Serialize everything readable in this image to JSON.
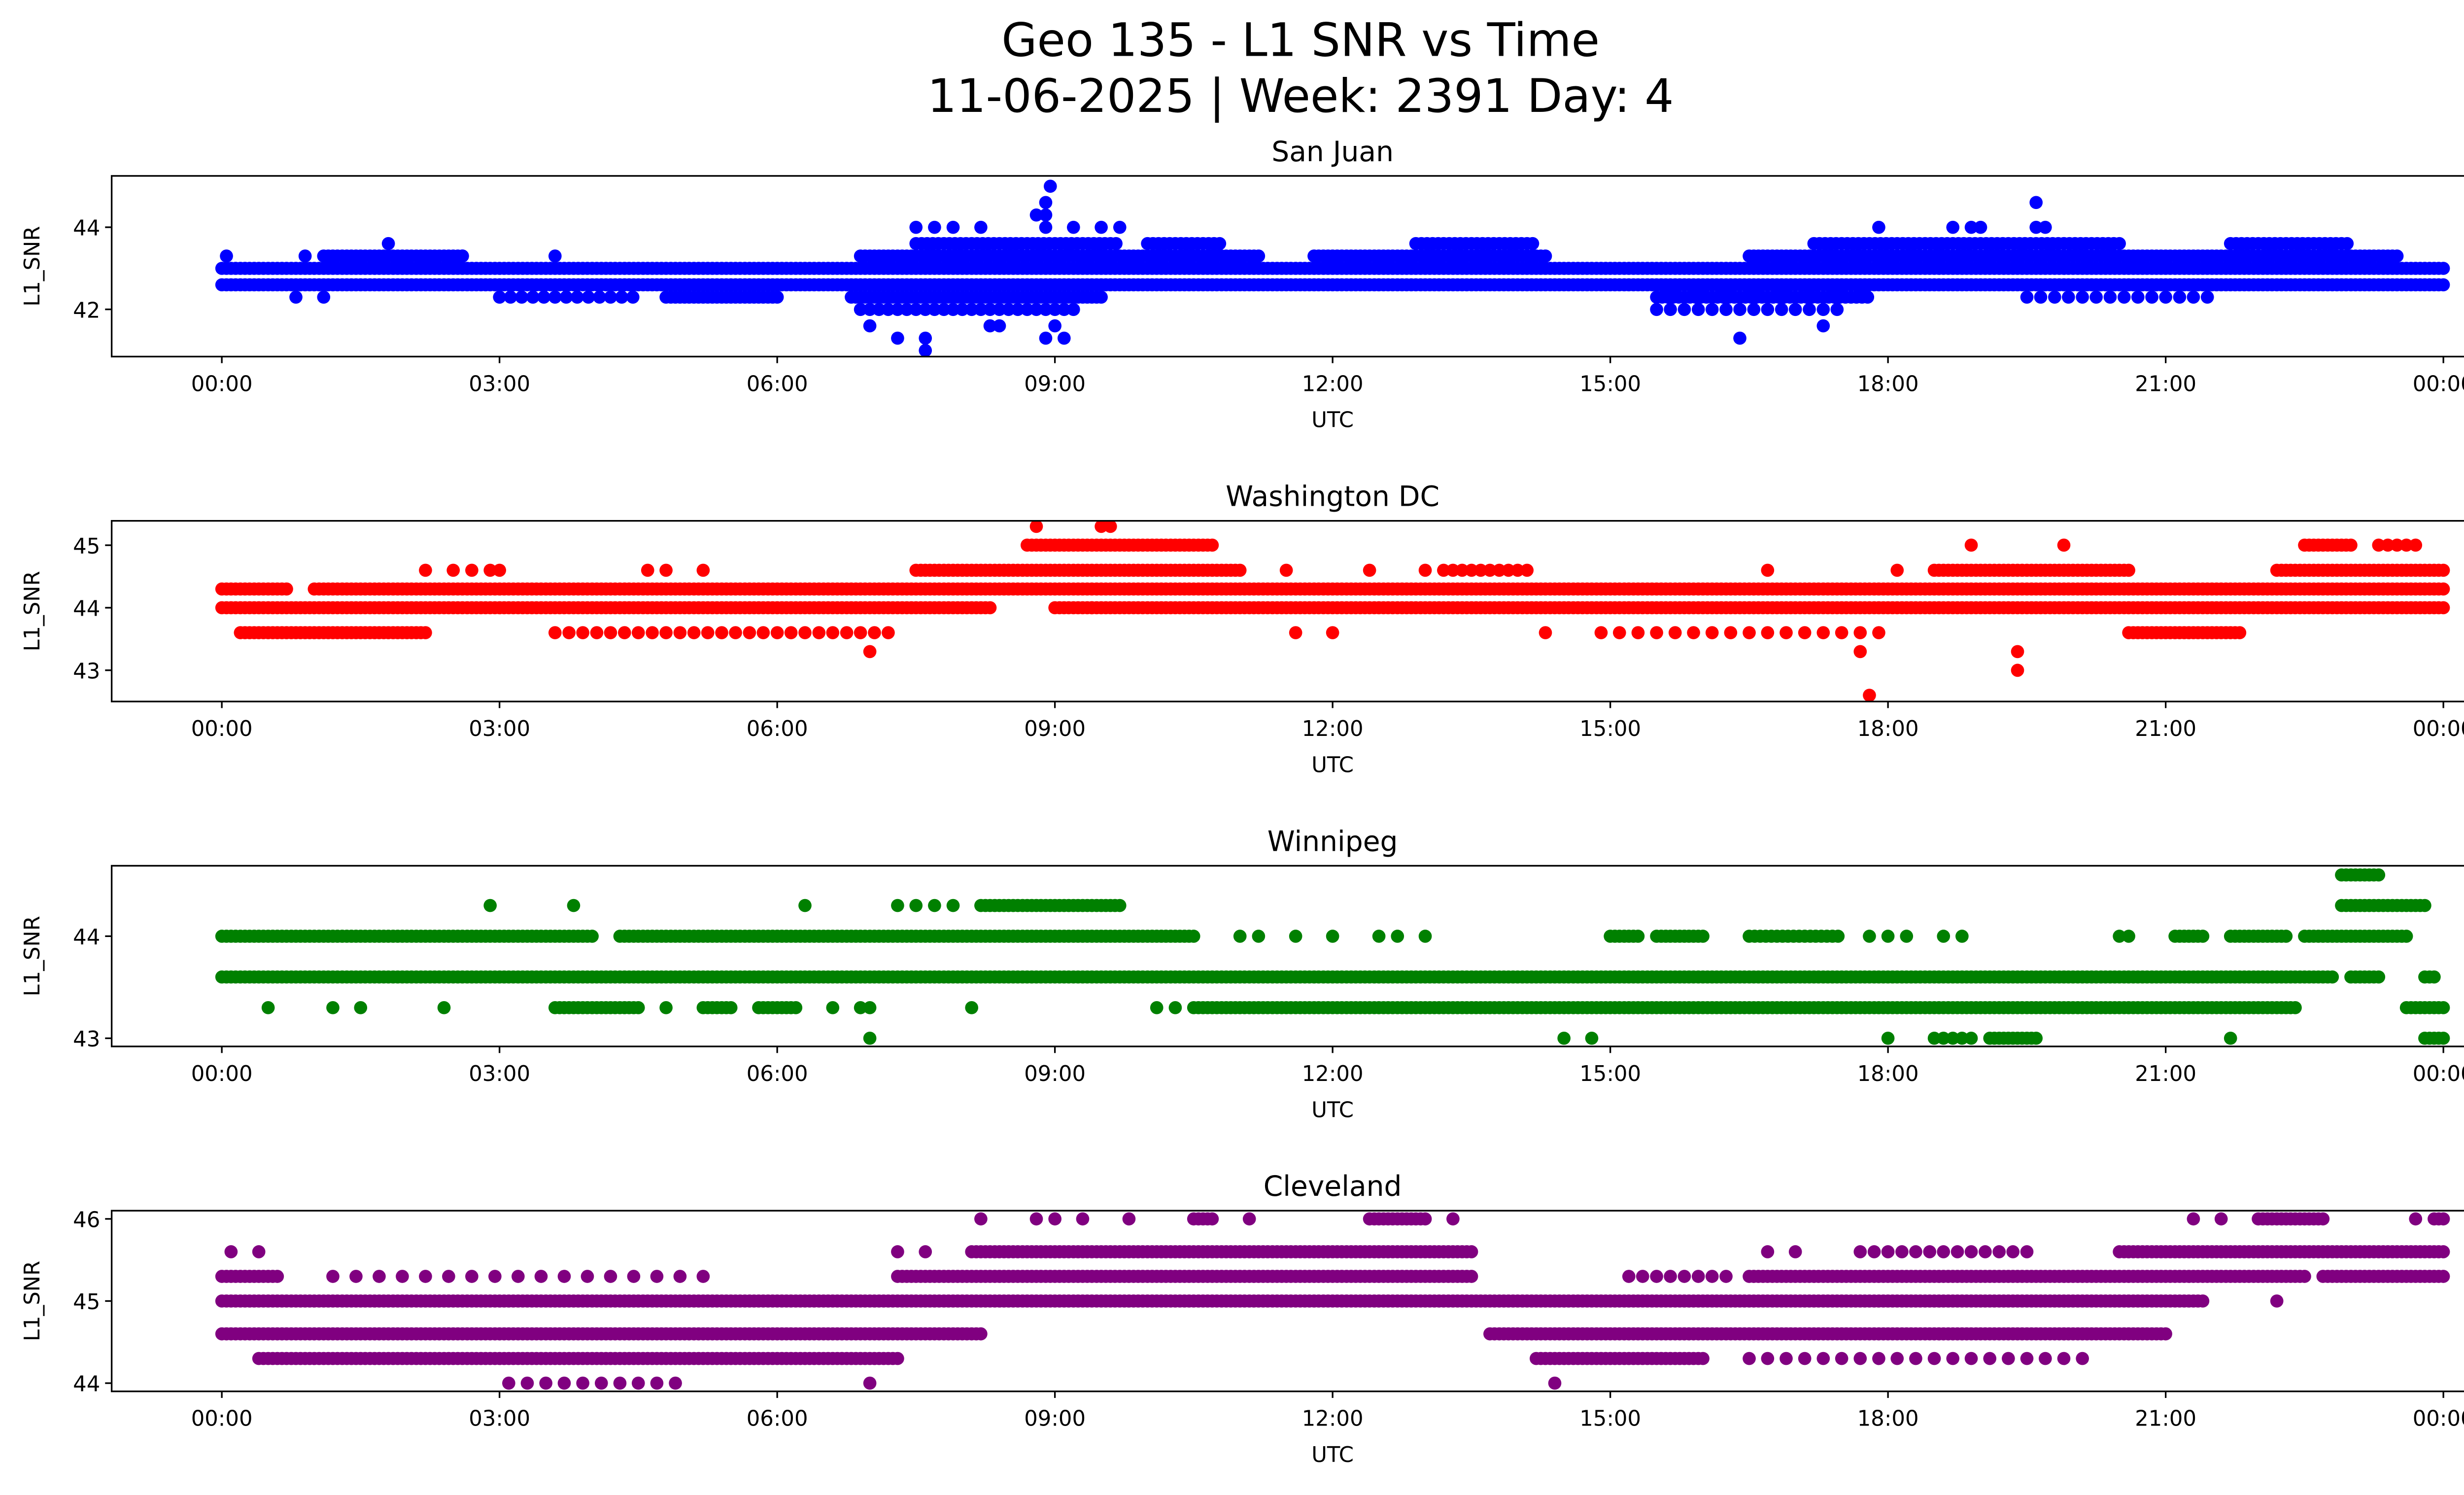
{
  "chart_data": {
    "type": "scatter",
    "title_line1": "Geo 135 - L1 SNR vs Time",
    "title_line2": "11-06-2025 | Week: 2391 Day: 4",
    "xlabel": "UTC",
    "ylabel": "L1_SNR",
    "x_unit": "hours UTC",
    "xlim": [
      -1.19,
      25.19
    ],
    "x_ticks": [
      0,
      3,
      6,
      9,
      12,
      15,
      18,
      21,
      24
    ],
    "x_tick_labels": [
      "00:00",
      "03:00",
      "06:00",
      "09:00",
      "12:00",
      "15:00",
      "18:00",
      "21:00",
      "00:00"
    ],
    "panels": [
      {
        "title": "San Juan",
        "color": "#0000ff",
        "ylim": [
          40.85,
          45.25
        ],
        "y_ticks": [
          42,
          44
        ],
        "y_tick_labels": [
          "42",
          "44"
        ],
        "runs": [
          [
            42.6,
            0,
            24,
            0.05
          ],
          [
            43.0,
            0,
            24,
            0.05
          ],
          [
            43.3,
            1.1,
            2.6,
            0.05
          ],
          [
            43.3,
            6.9,
            11.2,
            0.05
          ],
          [
            43.3,
            11.8,
            14.3,
            0.05
          ],
          [
            43.3,
            16.5,
            23.5,
            0.05
          ],
          [
            43.6,
            7.5,
            9.7,
            0.06
          ],
          [
            43.6,
            10.0,
            10.8,
            0.06
          ],
          [
            43.6,
            12.9,
            14.2,
            0.06
          ],
          [
            43.6,
            17.2,
            20.5,
            0.06
          ],
          [
            43.6,
            21.7,
            23.0,
            0.06
          ],
          [
            42.3,
            3.0,
            4.5,
            0.12
          ],
          [
            42.3,
            4.8,
            6.0,
            0.05
          ],
          [
            42.3,
            6.8,
            9.5,
            0.05
          ],
          [
            42.3,
            15.5,
            17.8,
            0.06
          ],
          [
            42.3,
            19.5,
            21.5,
            0.15
          ],
          [
            42.0,
            6.9,
            9.2,
            0.1
          ],
          [
            42.0,
            15.5,
            17.5,
            0.15
          ]
        ],
        "points": [
          [
            7.5,
            44
          ],
          [
            7.7,
            44
          ],
          [
            7.9,
            44
          ],
          [
            8.2,
            44
          ],
          [
            8.9,
            44
          ],
          [
            9.2,
            44
          ],
          [
            9.5,
            44
          ],
          [
            9.7,
            44
          ],
          [
            17.9,
            44
          ],
          [
            18.7,
            44
          ],
          [
            18.9,
            44
          ],
          [
            19.0,
            44
          ],
          [
            19.6,
            44
          ],
          [
            19.7,
            44
          ],
          [
            8.8,
            44.3
          ],
          [
            8.9,
            44.3
          ],
          [
            8.9,
            44.6
          ],
          [
            19.6,
            44.6
          ],
          [
            8.95,
            45
          ],
          [
            7.0,
            41.6
          ],
          [
            8.3,
            41.6
          ],
          [
            8.4,
            41.6
          ],
          [
            9.0,
            41.6
          ],
          [
            17.3,
            41.6
          ],
          [
            7.3,
            41.3
          ],
          [
            7.6,
            41.3
          ],
          [
            8.9,
            41.3
          ],
          [
            9.1,
            41.3
          ],
          [
            16.4,
            41.3
          ],
          [
            7.6,
            41.0
          ],
          [
            1.8,
            43.6
          ],
          [
            0.05,
            43.3
          ],
          [
            0.9,
            43.3
          ],
          [
            2.6,
            43.3
          ],
          [
            3.6,
            43.3
          ],
          [
            0.8,
            42.3
          ],
          [
            1.1,
            42.3
          ]
        ]
      },
      {
        "title": "Washington DC",
        "color": "#ff0000",
        "ylim": [
          42.5,
          45.39
        ],
        "y_ticks": [
          43,
          44,
          45
        ],
        "y_tick_labels": [
          "43",
          "44",
          "45"
        ],
        "runs": [
          [
            44.3,
            0,
            0.7,
            0.05
          ],
          [
            44.3,
            1.0,
            24,
            0.05
          ],
          [
            44.0,
            0,
            8.3,
            0.05
          ],
          [
            44.0,
            9.0,
            24,
            0.05
          ],
          [
            43.6,
            0.2,
            2.2,
            0.05
          ],
          [
            43.6,
            3.6,
            7.3,
            0.15
          ],
          [
            43.6,
            14.9,
            17.9,
            0.2
          ],
          [
            43.6,
            20.6,
            21.8,
            0.05
          ],
          [
            44.6,
            7.5,
            11.0,
            0.05
          ],
          [
            44.6,
            18.5,
            20.6,
            0.05
          ],
          [
            44.6,
            22.2,
            24,
            0.05
          ],
          [
            44.6,
            13.2,
            14.1,
            0.1
          ],
          [
            45.0,
            8.7,
            10.7,
            0.05
          ],
          [
            45.0,
            22.5,
            23.0,
            0.05
          ],
          [
            45.0,
            23.3,
            23.7,
            0.1
          ]
        ],
        "points": [
          [
            2.2,
            44.6
          ],
          [
            2.5,
            44.6
          ],
          [
            2.7,
            44.6
          ],
          [
            2.9,
            44.6
          ],
          [
            3.0,
            44.6
          ],
          [
            4.6,
            44.6
          ],
          [
            4.8,
            44.6
          ],
          [
            5.2,
            44.6
          ],
          [
            11.5,
            44.6
          ],
          [
            12.4,
            44.6
          ],
          [
            13.0,
            44.6
          ],
          [
            16.7,
            44.6
          ],
          [
            18.1,
            44.6
          ],
          [
            18.9,
            45
          ],
          [
            19.9,
            45
          ],
          [
            8.8,
            45.3
          ],
          [
            9.5,
            45.3
          ],
          [
            9.6,
            45.3
          ],
          [
            7.0,
            43.3
          ],
          [
            17.7,
            43.3
          ],
          [
            19.4,
            43.3
          ],
          [
            19.4,
            43.0
          ],
          [
            17.8,
            42.6
          ],
          [
            11.6,
            43.6
          ],
          [
            12.0,
            43.6
          ],
          [
            14.3,
            43.6
          ],
          [
            9.4,
            44.0
          ]
        ]
      },
      {
        "title": "Winnipeg",
        "color": "#008000",
        "ylim": [
          42.92,
          44.69
        ],
        "y_ticks": [
          43,
          44
        ],
        "y_tick_labels": [
          "43",
          "44"
        ],
        "runs": [
          [
            44.0,
            0,
            4.0,
            0.05
          ],
          [
            44.0,
            4.3,
            10.5,
            0.05
          ],
          [
            44.0,
            15.0,
            15.3,
            0.05
          ],
          [
            44.0,
            15.5,
            16.0,
            0.05
          ],
          [
            44.0,
            16.5,
            17.5,
            0.06
          ],
          [
            44.0,
            21.1,
            21.4,
            0.05
          ],
          [
            44.0,
            21.7,
            22.3,
            0.05
          ],
          [
            44.0,
            22.5,
            23.6,
            0.05
          ],
          [
            43.6,
            0,
            22.8,
            0.05
          ],
          [
            43.6,
            23.0,
            23.3,
            0.05
          ],
          [
            43.6,
            23.8,
            23.9,
            0.05
          ],
          [
            43.3,
            3.6,
            4.5,
            0.05
          ],
          [
            43.3,
            5.2,
            5.5,
            0.05
          ],
          [
            43.3,
            5.8,
            6.2,
            0.05
          ],
          [
            43.3,
            10.5,
            22.4,
            0.05
          ],
          [
            43.3,
            23.6,
            24,
            0.05
          ],
          [
            43.0,
            18.5,
            18.9,
            0.1
          ],
          [
            43.0,
            19.1,
            19.6,
            0.05
          ],
          [
            43.0,
            23.8,
            24,
            0.05
          ],
          [
            44.3,
            8.2,
            9.7,
            0.05
          ],
          [
            44.3,
            22.9,
            23.8,
            0.05
          ],
          [
            44.6,
            22.9,
            23.3,
            0.05
          ]
        ],
        "points": [
          [
            11.0,
            44
          ],
          [
            11.2,
            44
          ],
          [
            11.6,
            44
          ],
          [
            12.0,
            44
          ],
          [
            12.5,
            44
          ],
          [
            12.7,
            44
          ],
          [
            13.0,
            44
          ],
          [
            17.8,
            44
          ],
          [
            18.0,
            44
          ],
          [
            18.2,
            44
          ],
          [
            18.6,
            44
          ],
          [
            18.8,
            44
          ],
          [
            20.5,
            44
          ],
          [
            20.6,
            44
          ],
          [
            0.5,
            43.3
          ],
          [
            1.2,
            43.3
          ],
          [
            1.5,
            43.3
          ],
          [
            2.4,
            43.3
          ],
          [
            4.8,
            43.3
          ],
          [
            6.6,
            43.3
          ],
          [
            6.9,
            43.3
          ],
          [
            7.0,
            43.3
          ],
          [
            8.1,
            43.3
          ],
          [
            10.1,
            43.3
          ],
          [
            10.3,
            43.3
          ],
          [
            7.0,
            43
          ],
          [
            14.5,
            43
          ],
          [
            14.8,
            43
          ],
          [
            18.0,
            43
          ],
          [
            21.7,
            43
          ],
          [
            2.9,
            44.3
          ],
          [
            3.8,
            44.3
          ],
          [
            6.3,
            44.3
          ],
          [
            7.3,
            44.3
          ],
          [
            7.5,
            44.3
          ],
          [
            7.7,
            44.3
          ],
          [
            7.9,
            44.3
          ]
        ]
      },
      {
        "title": "Cleveland",
        "color": "#800080",
        "ylim": [
          43.9,
          46.1
        ],
        "y_ticks": [
          44,
          45,
          46
        ],
        "y_tick_labels": [
          "44",
          "45",
          "46"
        ],
        "runs": [
          [
            45.0,
            0,
            21.4,
            0.05
          ],
          [
            44.6,
            0,
            8.2,
            0.05
          ],
          [
            44.6,
            13.7,
            21.0,
            0.05
          ],
          [
            44.3,
            0.4,
            7.3,
            0.05
          ],
          [
            44.3,
            14.2,
            16.0,
            0.05
          ],
          [
            44.3,
            16.5,
            20.1,
            0.2
          ],
          [
            44.0,
            3.1,
            4.9,
            0.2
          ],
          [
            45.3,
            0,
            0.6,
            0.05
          ],
          [
            45.3,
            1.2,
            5.2,
            0.25
          ],
          [
            45.3,
            7.3,
            13.5,
            0.05
          ],
          [
            45.3,
            15.2,
            16.3,
            0.15
          ],
          [
            45.3,
            16.5,
            22.5,
            0.05
          ],
          [
            45.3,
            22.7,
            24,
            0.05
          ],
          [
            45.6,
            8.1,
            13.5,
            0.05
          ],
          [
            45.6,
            17.7,
            19.5,
            0.15
          ],
          [
            45.6,
            20.5,
            24,
            0.05
          ],
          [
            46.0,
            10.5,
            10.7,
            0.05
          ],
          [
            46.0,
            12.4,
            13.0,
            0.05
          ],
          [
            46.0,
            22.0,
            22.7,
            0.05
          ],
          [
            46.0,
            23.9,
            24,
            0.05
          ]
        ],
        "points": [
          [
            7.0,
            44
          ],
          [
            14.4,
            44
          ],
          [
            16.7,
            45.6
          ],
          [
            17.0,
            45.6
          ],
          [
            7.3,
            45.6
          ],
          [
            7.6,
            45.6
          ],
          [
            8.2,
            46
          ],
          [
            8.8,
            46
          ],
          [
            9.0,
            46
          ],
          [
            9.3,
            46
          ],
          [
            9.8,
            46
          ],
          [
            11.1,
            46
          ],
          [
            13.3,
            46
          ],
          [
            21.3,
            46
          ],
          [
            21.6,
            46
          ],
          [
            23.7,
            46
          ],
          [
            22.2,
            45.0
          ],
          [
            0.1,
            45.6
          ],
          [
            0.4,
            45.6
          ]
        ]
      }
    ]
  }
}
